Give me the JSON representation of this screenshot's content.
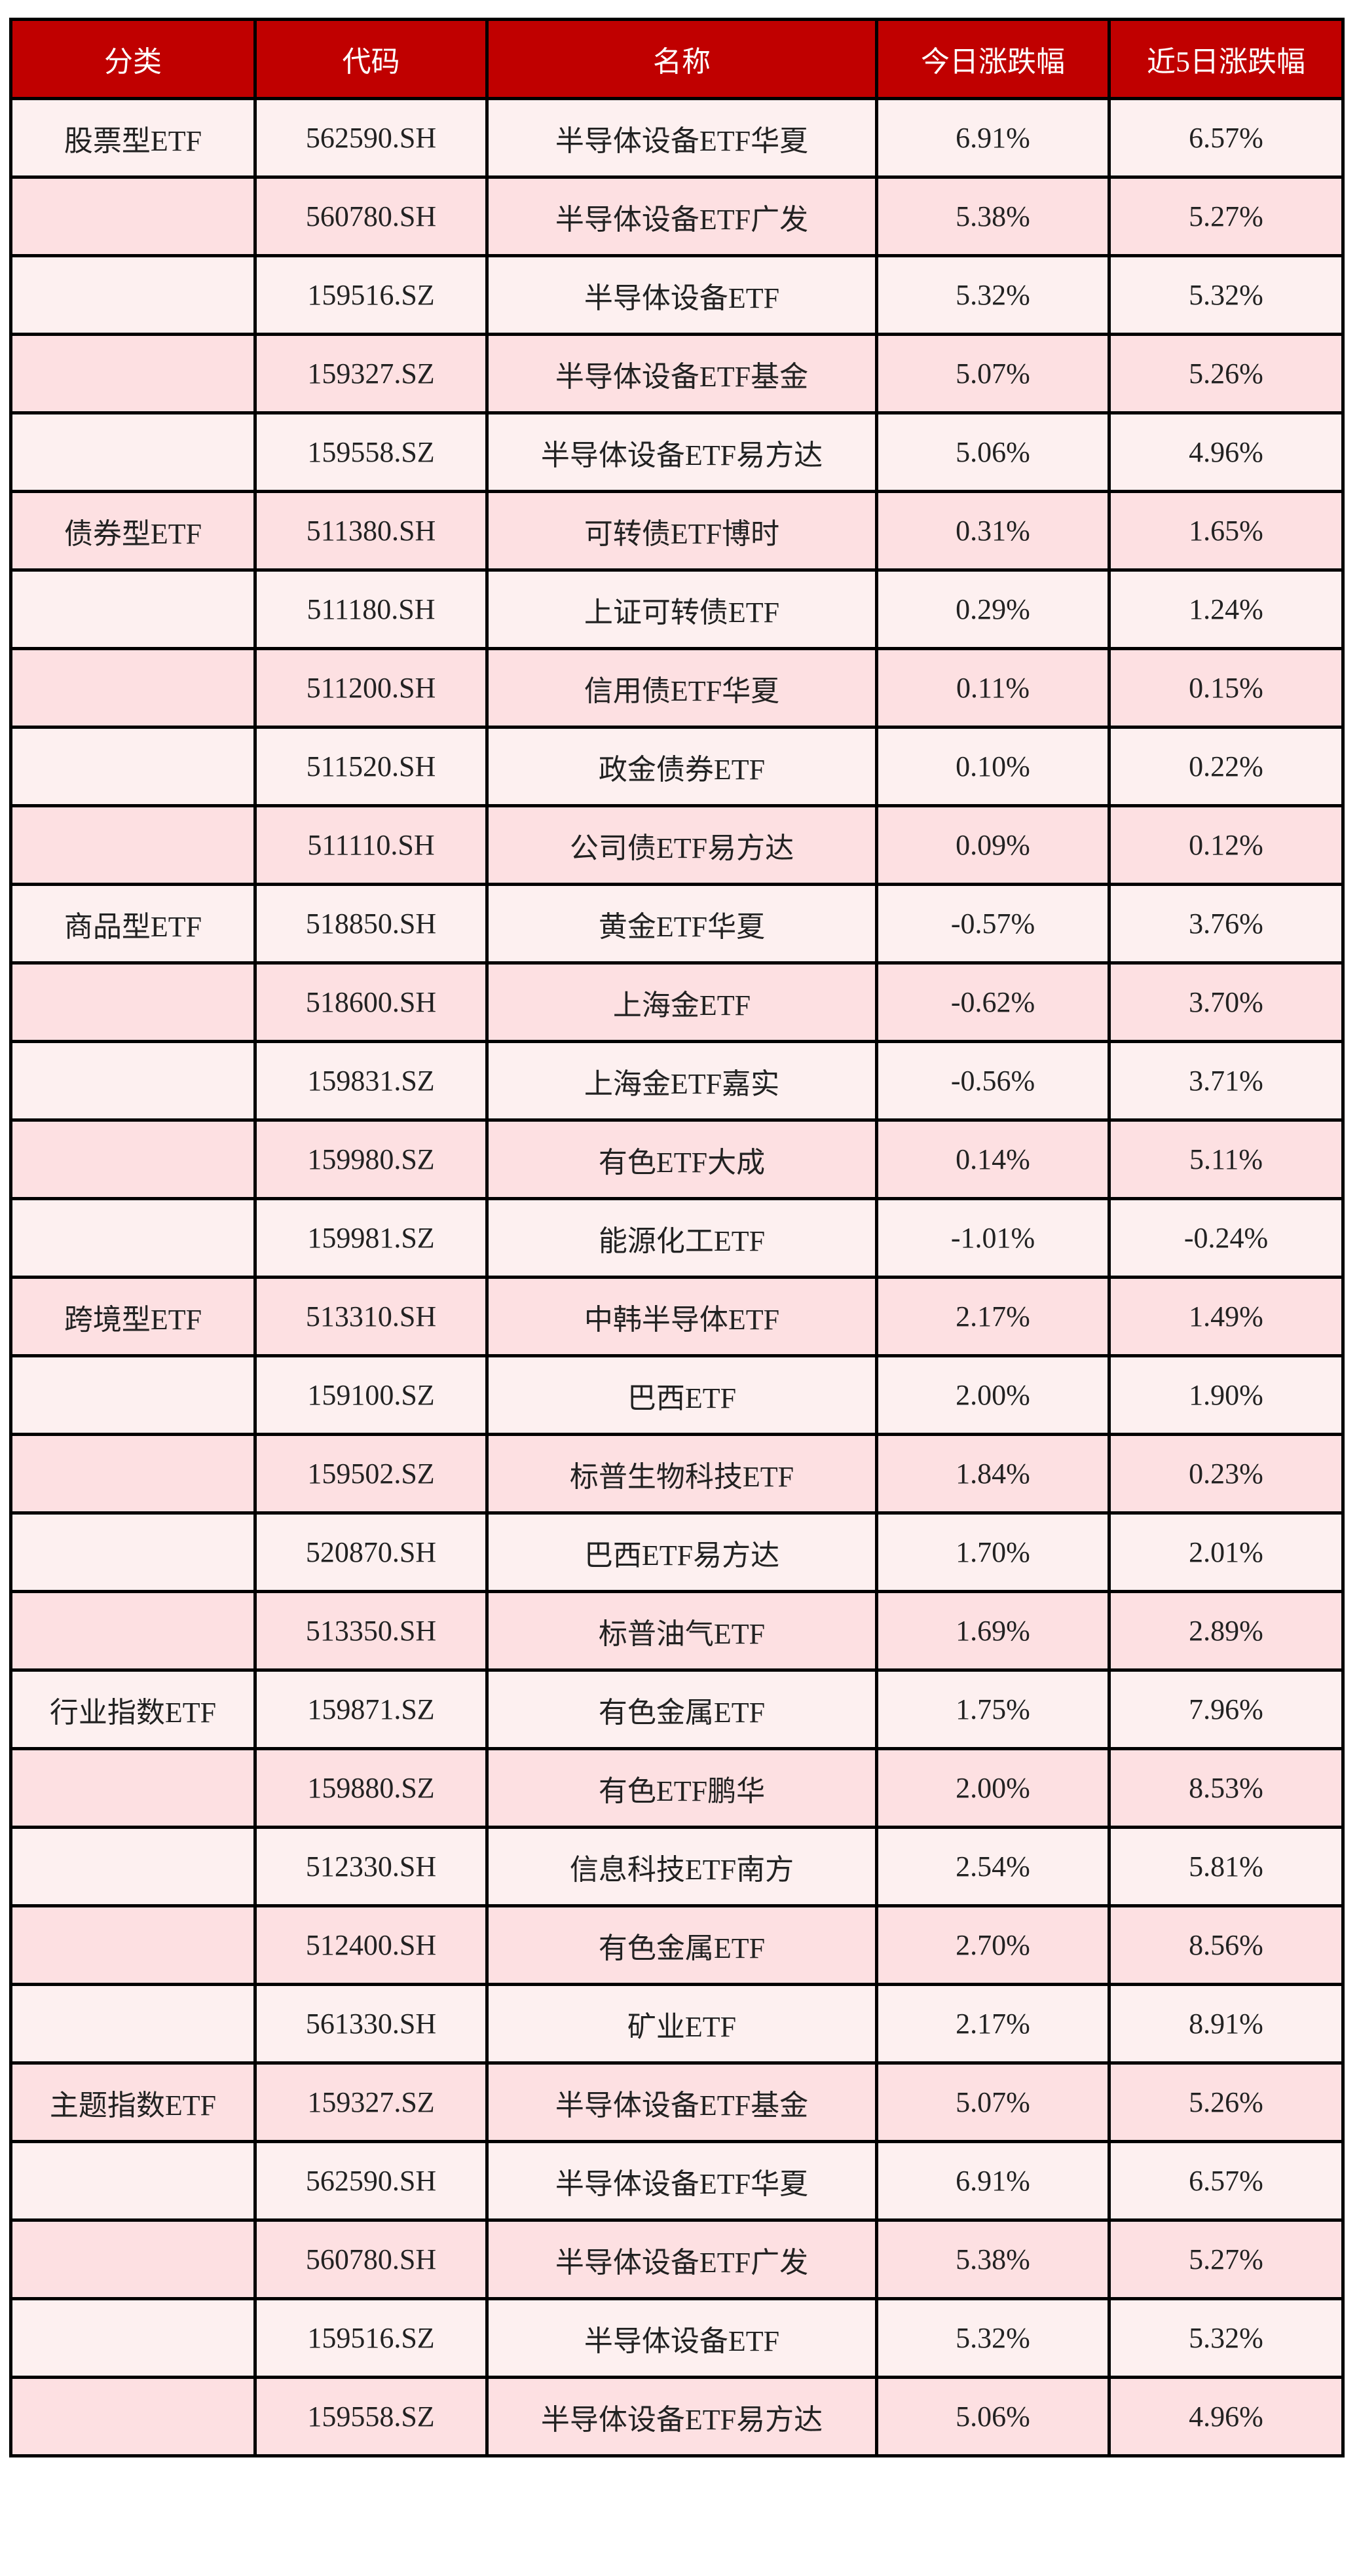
{
  "colors": {
    "header_bg": "#c00000",
    "row_odd": "#fdf0f0",
    "row_even": "#fde0e2",
    "border": "#000000"
  },
  "headers": [
    "分类",
    "代码",
    "名称",
    "今日涨跌幅",
    "近5日涨跌幅"
  ],
  "rows": [
    [
      "股票型ETF",
      "562590.SH",
      "半导体设备ETF华夏",
      "6.91%",
      "6.57%"
    ],
    [
      "",
      "560780.SH",
      "半导体设备ETF广发",
      "5.38%",
      "5.27%"
    ],
    [
      "",
      "159516.SZ",
      "半导体设备ETF",
      "5.32%",
      "5.32%"
    ],
    [
      "",
      "159327.SZ",
      "半导体设备ETF基金",
      "5.07%",
      "5.26%"
    ],
    [
      "",
      "159558.SZ",
      "半导体设备ETF易方达",
      "5.06%",
      "4.96%"
    ],
    [
      "债券型ETF",
      "511380.SH",
      "可转债ETF博时",
      "0.31%",
      "1.65%"
    ],
    [
      "",
      "511180.SH",
      "上证可转债ETF",
      "0.29%",
      "1.24%"
    ],
    [
      "",
      "511200.SH",
      "信用债ETF华夏",
      "0.11%",
      "0.15%"
    ],
    [
      "",
      "511520.SH",
      "政金债券ETF",
      "0.10%",
      "0.22%"
    ],
    [
      "",
      "511110.SH",
      "公司债ETF易方达",
      "0.09%",
      "0.12%"
    ],
    [
      "商品型ETF",
      "518850.SH",
      "黄金ETF华夏",
      "-0.57%",
      "3.76%"
    ],
    [
      "",
      "518600.SH",
      "上海金ETF",
      "-0.62%",
      "3.70%"
    ],
    [
      "",
      "159831.SZ",
      "上海金ETF嘉实",
      "-0.56%",
      "3.71%"
    ],
    [
      "",
      "159980.SZ",
      "有色ETF大成",
      "0.14%",
      "5.11%"
    ],
    [
      "",
      "159981.SZ",
      "能源化工ETF",
      "-1.01%",
      "-0.24%"
    ],
    [
      "跨境型ETF",
      "513310.SH",
      "中韩半导体ETF",
      "2.17%",
      "1.49%"
    ],
    [
      "",
      "159100.SZ",
      "巴西ETF",
      "2.00%",
      "1.90%"
    ],
    [
      "",
      "159502.SZ",
      "标普生物科技ETF",
      "1.84%",
      "0.23%"
    ],
    [
      "",
      "520870.SH",
      "巴西ETF易方达",
      "1.70%",
      "2.01%"
    ],
    [
      "",
      "513350.SH",
      "标普油气ETF",
      "1.69%",
      "2.89%"
    ],
    [
      "行业指数ETF",
      "159871.SZ",
      "有色金属ETF",
      "1.75%",
      "7.96%"
    ],
    [
      "",
      "159880.SZ",
      "有色ETF鹏华",
      "2.00%",
      "8.53%"
    ],
    [
      "",
      "512330.SH",
      "信息科技ETF南方",
      "2.54%",
      "5.81%"
    ],
    [
      "",
      "512400.SH",
      "有色金属ETF",
      "2.70%",
      "8.56%"
    ],
    [
      "",
      "561330.SH",
      "矿业ETF",
      "2.17%",
      "8.91%"
    ],
    [
      "主题指数ETF",
      "159327.SZ",
      "半导体设备ETF基金",
      "5.07%",
      "5.26%"
    ],
    [
      "",
      "562590.SH",
      "半导体设备ETF华夏",
      "6.91%",
      "6.57%"
    ],
    [
      "",
      "560780.SH",
      "半导体设备ETF广发",
      "5.38%",
      "5.27%"
    ],
    [
      "",
      "159516.SZ",
      "半导体设备ETF",
      "5.32%",
      "5.32%"
    ],
    [
      "",
      "159558.SZ",
      "半导体设备ETF易方达",
      "5.06%",
      "4.96%"
    ]
  ]
}
